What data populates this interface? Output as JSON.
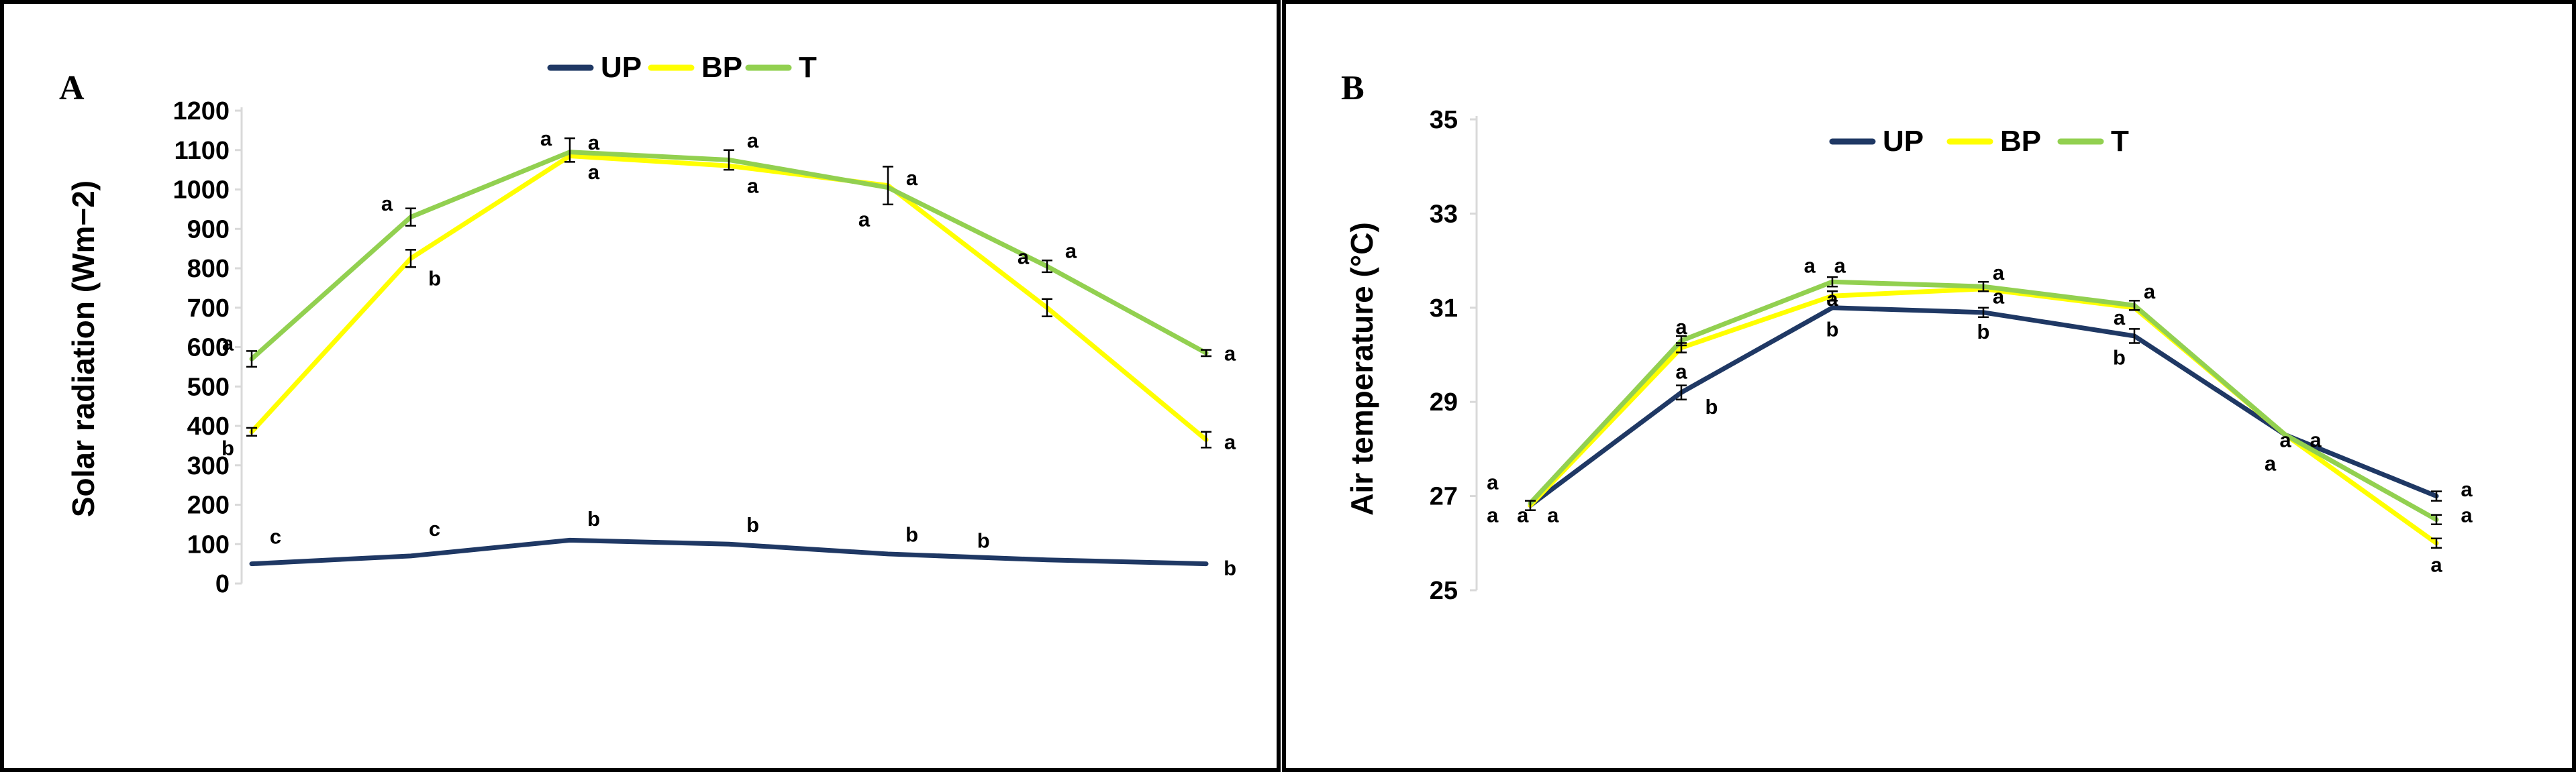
{
  "chart_data": [
    {
      "type": "line",
      "panel_label": "A",
      "title": "",
      "xlabel": "",
      "ylabel": "Solar radiation (Wm−2)",
      "ylim": [
        0,
        1200
      ],
      "yticks": [
        0,
        100,
        200,
        300,
        400,
        500,
        600,
        700,
        800,
        900,
        1000,
        1100,
        1200
      ],
      "ytick_labels": [
        "0",
        "100",
        "200",
        "300",
        "400",
        "500",
        "600",
        "700",
        "800",
        "900",
        "1000",
        "1100",
        "1200"
      ],
      "grid": false,
      "legend": "top-center",
      "x": [
        1,
        2,
        3,
        4,
        5,
        6,
        7
      ],
      "series": [
        {
          "name": "UP",
          "color": "#1f3864",
          "values": [
            50,
            70,
            110,
            100,
            75,
            60,
            50
          ]
        },
        {
          "name": "BP",
          "color": "#ffff00",
          "values": [
            385,
            825,
            1085,
            1060,
            1010,
            700,
            365
          ]
        },
        {
          "name": "T",
          "color": "#92d050",
          "values": [
            570,
            930,
            1095,
            1075,
            1005,
            805,
            585
          ]
        }
      ],
      "error_bars": [
        {
          "x": 1,
          "y": 570,
          "e": 20
        },
        {
          "x": 1,
          "y": 385,
          "e": 10
        },
        {
          "x": 2,
          "y": 930,
          "e": 22
        },
        {
          "x": 2,
          "y": 825,
          "e": 22
        },
        {
          "x": 3,
          "y": 1100,
          "e": 30
        },
        {
          "x": 4,
          "y": 1075,
          "e": 25
        },
        {
          "x": 5,
          "y": 1010,
          "e": 48
        },
        {
          "x": 6,
          "y": 805,
          "e": 15
        },
        {
          "x": 6,
          "y": 700,
          "e": 22
        },
        {
          "x": 7,
          "y": 585,
          "e": 8
        },
        {
          "x": 7,
          "y": 365,
          "e": 20
        }
      ],
      "annotations": [
        {
          "text": "a",
          "x": 0.85,
          "y": 610
        },
        {
          "text": "b",
          "x": 0.85,
          "y": 345
        },
        {
          "text": "a",
          "x": 1.85,
          "y": 965
        },
        {
          "text": "b",
          "x": 2.15,
          "y": 775
        },
        {
          "text": "a",
          "x": 2.85,
          "y": 1130
        },
        {
          "text": "a",
          "x": 3.15,
          "y": 1120
        },
        {
          "text": "a",
          "x": 3.15,
          "y": 1045
        },
        {
          "text": "a",
          "x": 4.15,
          "y": 1010
        },
        {
          "text": "a",
          "x": 4.15,
          "y": 1125
        },
        {
          "text": "a",
          "x": 4.85,
          "y": 925
        },
        {
          "text": "a",
          "x": 5.15,
          "y": 1030
        },
        {
          "text": "a",
          "x": 5.85,
          "y": 830
        },
        {
          "text": "a",
          "x": 6.15,
          "y": 845
        },
        {
          "text": "a",
          "x": 7.15,
          "y": 585
        },
        {
          "text": "a",
          "x": 7.15,
          "y": 360
        },
        {
          "text": "c",
          "x": 1.15,
          "y": 120
        },
        {
          "text": "c",
          "x": 2.15,
          "y": 140
        },
        {
          "text": "b",
          "x": 3.15,
          "y": 165
        },
        {
          "text": "b",
          "x": 4.15,
          "y": 150
        },
        {
          "text": "b",
          "x": 5.15,
          "y": 125
        },
        {
          "text": "b",
          "x": 5.6,
          "y": 110
        },
        {
          "text": "b",
          "x": 7.15,
          "y": 40
        }
      ]
    },
    {
      "type": "line",
      "panel_label": "B",
      "title": "",
      "xlabel": "",
      "ylabel": "Air temperature (°C)",
      "ylim": [
        25,
        35
      ],
      "yticks": [
        25,
        27,
        29,
        31,
        33,
        35
      ],
      "ytick_labels": [
        "25",
        "27",
        "29",
        "31",
        "33",
        "35"
      ],
      "grid": false,
      "legend": "top-center",
      "x": [
        1,
        2,
        3,
        4,
        5,
        6,
        7
      ],
      "series": [
        {
          "name": "UP",
          "color": "#1f3864",
          "values": [
            26.8,
            29.2,
            31.0,
            30.9,
            30.4,
            28.3,
            27.0
          ]
        },
        {
          "name": "BP",
          "color": "#ffff00",
          "values": [
            26.8,
            30.15,
            31.25,
            31.4,
            31.0,
            28.3,
            26.0
          ]
        },
        {
          "name": "T",
          "color": "#92d050",
          "values": [
            26.85,
            30.3,
            31.55,
            31.45,
            31.05,
            28.3,
            26.5
          ]
        }
      ],
      "error_bars": [
        {
          "x": 1,
          "y": 26.8,
          "e": 0.1
        },
        {
          "x": 2,
          "y": 30.3,
          "e": 0.1
        },
        {
          "x": 2,
          "y": 29.2,
          "e": 0.15
        },
        {
          "x": 2,
          "y": 30.15,
          "e": 0.1
        },
        {
          "x": 3,
          "y": 31.55,
          "e": 0.1
        },
        {
          "x": 3,
          "y": 31.25,
          "e": 0.1
        },
        {
          "x": 4,
          "y": 31.45,
          "e": 0.1
        },
        {
          "x": 4,
          "y": 30.9,
          "e": 0.1
        },
        {
          "x": 5,
          "y": 31.05,
          "e": 0.1
        },
        {
          "x": 5,
          "y": 30.4,
          "e": 0.15
        },
        {
          "x": 7,
          "y": 27.0,
          "e": 0.1
        },
        {
          "x": 7,
          "y": 26.5,
          "e": 0.1
        },
        {
          "x": 7,
          "y": 26.0,
          "e": 0.1
        }
      ],
      "annotations": [
        {
          "text": "a",
          "x": 0.75,
          "y": 27.3
        },
        {
          "text": "a",
          "x": 0.75,
          "y": 26.6
        },
        {
          "text": "a",
          "x": 0.95,
          "y": 26.6
        },
        {
          "text": "a",
          "x": 1.15,
          "y": 26.6
        },
        {
          "text": "a",
          "x": 2.0,
          "y": 30.6
        },
        {
          "text": "a",
          "x": 2.0,
          "y": 29.65
        },
        {
          "text": "b",
          "x": 2.2,
          "y": 28.9
        },
        {
          "text": "a",
          "x": 2.85,
          "y": 31.9
        },
        {
          "text": "a",
          "x": 3.05,
          "y": 31.9
        },
        {
          "text": "a",
          "x": 3.0,
          "y": 31.2
        },
        {
          "text": "b",
          "x": 3.0,
          "y": 30.55
        },
        {
          "text": "a",
          "x": 4.1,
          "y": 31.75
        },
        {
          "text": "a",
          "x": 4.1,
          "y": 31.25
        },
        {
          "text": "b",
          "x": 4.0,
          "y": 30.5
        },
        {
          "text": "a",
          "x": 5.1,
          "y": 31.35
        },
        {
          "text": "a",
          "x": 4.9,
          "y": 30.8
        },
        {
          "text": "b",
          "x": 4.9,
          "y": 29.95
        },
        {
          "text": "a",
          "x": 6.0,
          "y": 28.2
        },
        {
          "text": "a",
          "x": 6.2,
          "y": 28.2
        },
        {
          "text": "a",
          "x": 5.9,
          "y": 27.7
        },
        {
          "text": "a",
          "x": 7.2,
          "y": 27.15
        },
        {
          "text": "a",
          "x": 7.2,
          "y": 26.6
        },
        {
          "text": "a",
          "x": 7.0,
          "y": 25.55
        }
      ]
    }
  ]
}
